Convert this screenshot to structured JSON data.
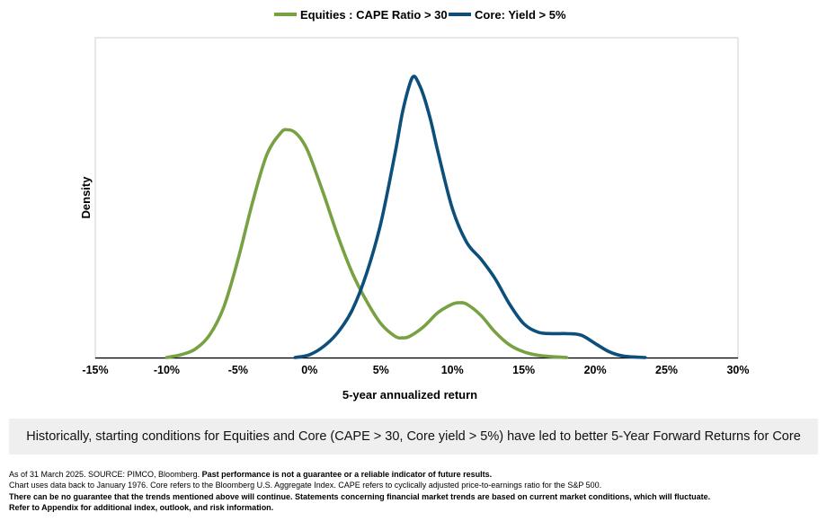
{
  "chart_data": {
    "type": "line",
    "title": "",
    "xlabel": "5-year annualized return",
    "ylabel": "Density",
    "xlim": [
      -15,
      30
    ],
    "ylim": [
      0,
      1
    ],
    "grid": false,
    "legend": "top-center",
    "x_ticks": [
      "-15%",
      "-10%",
      "-5%",
      "0%",
      "5%",
      "10%",
      "15%",
      "20%",
      "25%",
      "30%"
    ],
    "series": [
      {
        "name": "Equities : CAPE Ratio > 30",
        "color": "#77a143",
        "x": [
          -10,
          -9,
          -8,
          -7,
          -6,
          -5,
          -4,
          -3,
          -2,
          -1.5,
          -1,
          -0.5,
          0,
          1,
          2,
          3,
          4,
          5,
          6,
          6.5,
          7,
          8,
          9,
          10,
          10.5,
          11,
          12,
          13,
          14,
          15,
          16,
          17,
          18
        ],
        "values": [
          0.0,
          0.01,
          0.03,
          0.08,
          0.18,
          0.35,
          0.55,
          0.72,
          0.8,
          0.81,
          0.8,
          0.77,
          0.72,
          0.58,
          0.43,
          0.3,
          0.2,
          0.12,
          0.075,
          0.07,
          0.075,
          0.11,
          0.16,
          0.19,
          0.195,
          0.19,
          0.15,
          0.09,
          0.045,
          0.02,
          0.008,
          0.003,
          0.0
        ]
      },
      {
        "name": "Core: Yield > 5%",
        "color": "#0b4f7a",
        "x": [
          -1,
          0,
          1,
          2,
          3,
          4,
          5,
          6,
          6.5,
          7,
          7.3,
          7.6,
          8,
          8.5,
          9,
          10,
          11,
          12,
          13,
          14,
          15,
          16,
          17,
          18,
          19,
          20,
          21,
          22,
          23.5
        ],
        "values": [
          0.0,
          0.01,
          0.04,
          0.09,
          0.17,
          0.3,
          0.48,
          0.73,
          0.87,
          0.97,
          1.0,
          0.98,
          0.93,
          0.84,
          0.73,
          0.53,
          0.41,
          0.35,
          0.28,
          0.19,
          0.12,
          0.09,
          0.085,
          0.085,
          0.08,
          0.05,
          0.02,
          0.005,
          0.0
        ]
      }
    ]
  },
  "callout": "Historically, starting conditions for Equities and Core (CAPE > 30, Core yield > 5%) have led to better 5-Year Forward Returns for Core",
  "footnotes": {
    "line1_normal": "As of 31 March 2025. SOURCE: PIMCO, Bloomberg. ",
    "line1_bold": "Past performance is not a guarantee or a reliable indicator of future results.",
    "line2": "Chart uses data back to January 1976. Core refers to the Bloomberg U.S. Aggregate Index. CAPE refers to cyclically adjusted price-to-earnings ratio for the S&P 500.",
    "line3": "There can be no guarantee that the trends mentioned above will continue. Statements concerning financial market trends are based on current market conditions, which will fluctuate.",
    "line4": "Refer to Appendix for additional index, outlook, and risk information."
  }
}
